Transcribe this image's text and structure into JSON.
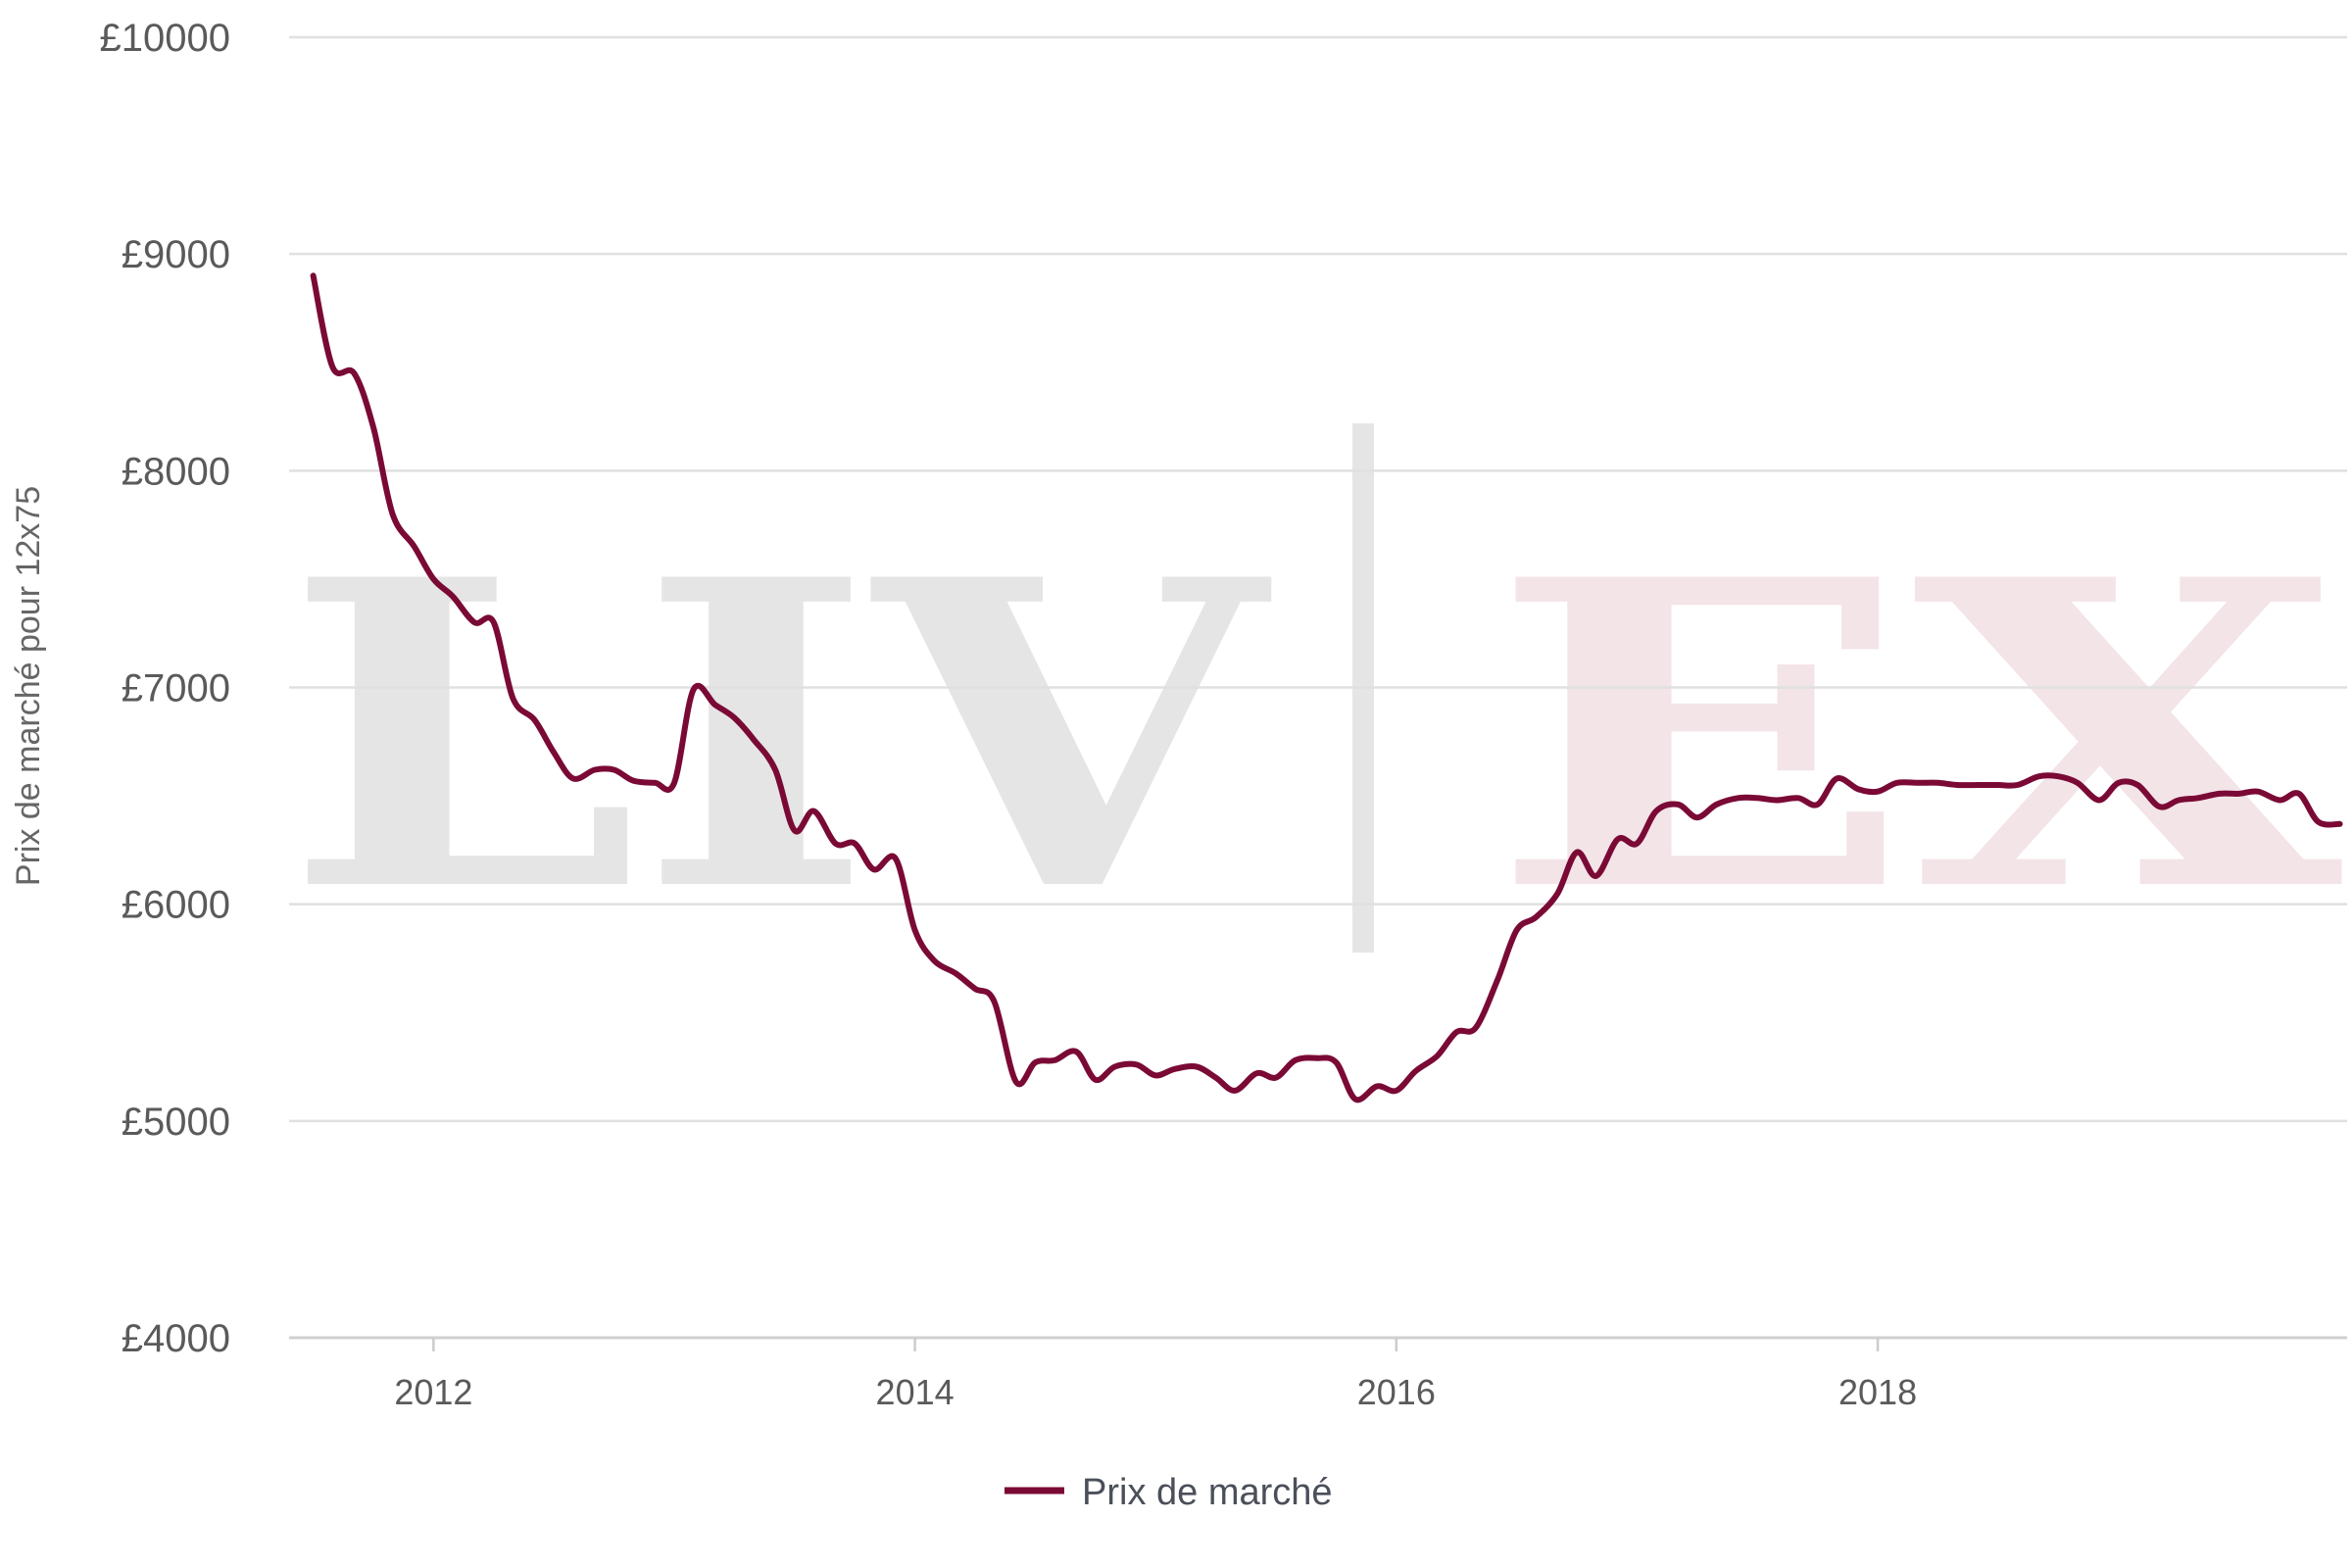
{
  "chart_data": {
    "type": "line",
    "ylabel": "Prix de marché pour 12x75",
    "xlabel": "",
    "y_ticks": [
      "£4000",
      "£5000",
      "£6000",
      "£7000",
      "£8000",
      "£9000",
      "£10000"
    ],
    "x_ticks": [
      "2012",
      "2014",
      "2016",
      "2018"
    ],
    "ylim": [
      4000,
      10000
    ],
    "xlim": [
      2011.4,
      2019.95
    ],
    "grid": true,
    "legend_position": "bottom",
    "watermark": {
      "left": "LIV",
      "right": "EX"
    },
    "colors": {
      "line": "#7a0a35",
      "grid": "#e0e0e0",
      "watermark_left": "#e5e5e5",
      "watermark_right": "#f3e4e8"
    },
    "series": [
      {
        "name": "Prix de marché",
        "points": [
          [
            2011.5,
            8900
          ],
          [
            2011.58,
            8480
          ],
          [
            2011.67,
            8450
          ],
          [
            2011.75,
            8200
          ],
          [
            2011.83,
            7800
          ],
          [
            2011.92,
            7650
          ],
          [
            2012.0,
            7500
          ],
          [
            2012.08,
            7420
          ],
          [
            2012.17,
            7300
          ],
          [
            2012.25,
            7300
          ],
          [
            2012.33,
            6950
          ],
          [
            2012.42,
            6850
          ],
          [
            2012.5,
            6700
          ],
          [
            2012.58,
            6580
          ],
          [
            2012.67,
            6620
          ],
          [
            2012.75,
            6620
          ],
          [
            2012.83,
            6570
          ],
          [
            2012.92,
            6560
          ],
          [
            2013.0,
            6560
          ],
          [
            2013.08,
            6990
          ],
          [
            2013.17,
            6920
          ],
          [
            2013.25,
            6860
          ],
          [
            2013.33,
            6760
          ],
          [
            2013.42,
            6620
          ],
          [
            2013.5,
            6340
          ],
          [
            2013.58,
            6430
          ],
          [
            2013.67,
            6280
          ],
          [
            2013.75,
            6280
          ],
          [
            2013.83,
            6160
          ],
          [
            2013.92,
            6210
          ],
          [
            2014.0,
            5880
          ],
          [
            2014.08,
            5740
          ],
          [
            2014.17,
            5680
          ],
          [
            2014.25,
            5610
          ],
          [
            2014.33,
            5550
          ],
          [
            2014.42,
            5180
          ],
          [
            2014.5,
            5270
          ],
          [
            2014.58,
            5280
          ],
          [
            2014.67,
            5320
          ],
          [
            2014.75,
            5190
          ],
          [
            2014.83,
            5250
          ],
          [
            2014.92,
            5260
          ],
          [
            2015.0,
            5210
          ],
          [
            2015.08,
            5240
          ],
          [
            2015.17,
            5250
          ],
          [
            2015.25,
            5200
          ],
          [
            2015.33,
            5140
          ],
          [
            2015.42,
            5220
          ],
          [
            2015.5,
            5200
          ],
          [
            2015.58,
            5280
          ],
          [
            2015.67,
            5290
          ],
          [
            2015.75,
            5270
          ],
          [
            2015.83,
            5100
          ],
          [
            2015.92,
            5160
          ],
          [
            2016.0,
            5140
          ],
          [
            2016.08,
            5230
          ],
          [
            2016.17,
            5300
          ],
          [
            2016.25,
            5410
          ],
          [
            2016.33,
            5430
          ],
          [
            2016.42,
            5650
          ],
          [
            2016.5,
            5880
          ],
          [
            2016.58,
            5940
          ],
          [
            2016.67,
            6050
          ],
          [
            2016.75,
            6240
          ],
          [
            2016.83,
            6130
          ],
          [
            2016.92,
            6300
          ],
          [
            2017.0,
            6280
          ],
          [
            2017.08,
            6430
          ],
          [
            2017.17,
            6460
          ],
          [
            2017.25,
            6400
          ],
          [
            2017.33,
            6460
          ],
          [
            2017.42,
            6490
          ],
          [
            2017.5,
            6490
          ],
          [
            2017.58,
            6480
          ],
          [
            2017.67,
            6490
          ],
          [
            2017.75,
            6460
          ],
          [
            2017.83,
            6580
          ],
          [
            2017.92,
            6530
          ],
          [
            2018.0,
            6520
          ],
          [
            2018.08,
            6560
          ],
          [
            2018.17,
            6560
          ],
          [
            2018.25,
            6560
          ],
          [
            2018.33,
            6550
          ],
          [
            2018.42,
            6550
          ],
          [
            2018.5,
            6550
          ],
          [
            2018.58,
            6550
          ],
          [
            2018.67,
            6590
          ],
          [
            2018.75,
            6590
          ],
          [
            2018.83,
            6560
          ],
          [
            2018.92,
            6480
          ],
          [
            2019.0,
            6560
          ],
          [
            2019.08,
            6550
          ],
          [
            2019.17,
            6450
          ],
          [
            2019.25,
            6480
          ],
          [
            2019.33,
            6490
          ],
          [
            2019.42,
            6510
          ],
          [
            2019.5,
            6510
          ],
          [
            2019.58,
            6520
          ],
          [
            2019.67,
            6480
          ],
          [
            2019.75,
            6510
          ],
          [
            2019.83,
            6380
          ],
          [
            2019.92,
            6370
          ]
        ]
      }
    ]
  }
}
